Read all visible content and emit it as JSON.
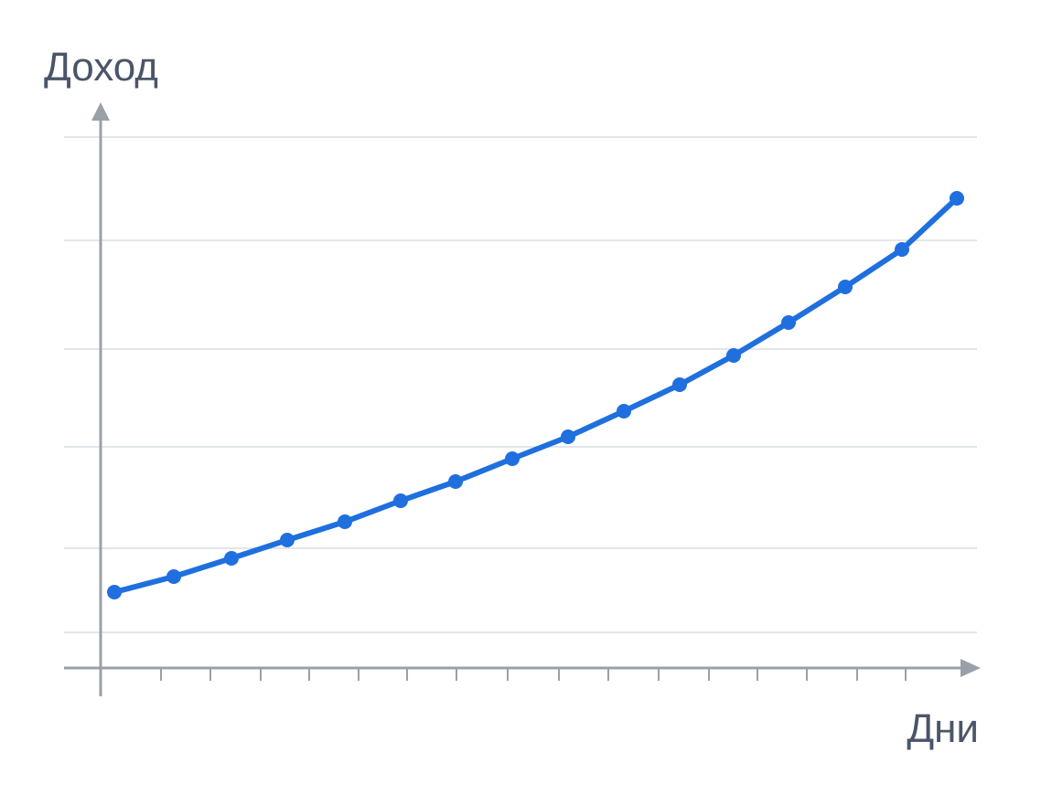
{
  "chart_data": {
    "type": "line",
    "y_axis_label": "Доход",
    "x_axis_label": "Дни",
    "x": [
      15,
      80,
      143,
      204,
      267,
      328,
      388,
      450,
      511,
      572,
      633,
      692,
      752,
      814,
      876,
      936
    ],
    "series": [
      {
        "color": "#1f6fde",
        "values": [
          83,
          100,
          120,
          140,
          160,
          183,
          204,
          229,
          253,
          281,
          310,
          342,
          378,
          417,
          458,
          514
        ]
      }
    ],
    "xlim": [
      0,
      960
    ],
    "ylim": [
      0,
      620
    ],
    "xticks": [
      0,
      66,
      120,
      175,
      228,
      282,
      335,
      389,
      445,
      501,
      555,
      610,
      665,
      718,
      772,
      827,
      880
    ],
    "yticks": [
      39,
      131,
      242,
      349,
      468,
      581
    ],
    "grid": true
  }
}
